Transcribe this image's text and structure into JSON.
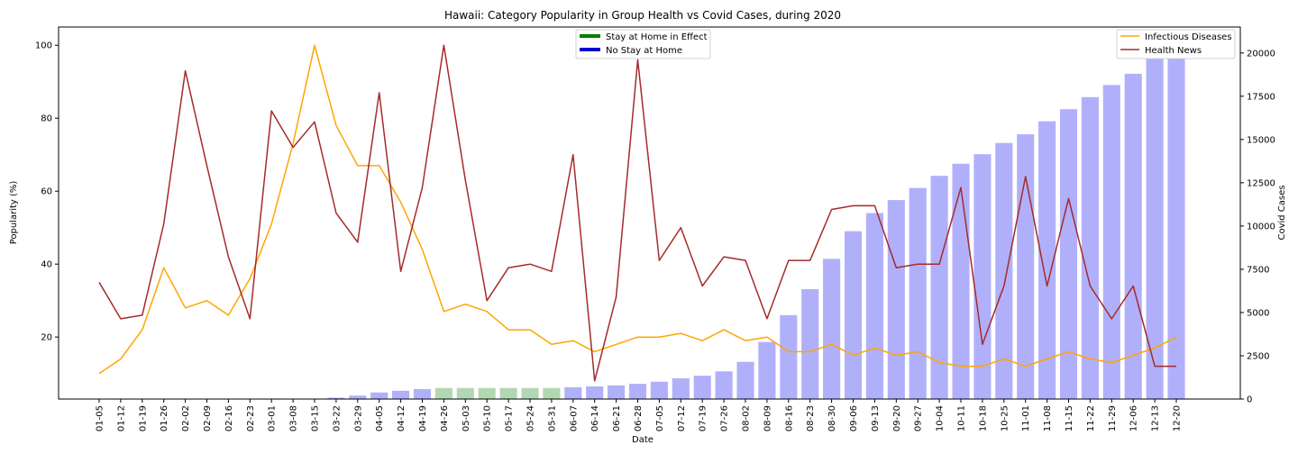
{
  "chart_data": {
    "type": "bar+line",
    "title": "Hawaii: Category Popularity in Group Health vs Covid Cases, during 2020",
    "xlabel": "Date",
    "ylabel_left": "Popularity (%)",
    "ylabel_right": "Covid Cases",
    "ylim_left": [
      3,
      105
    ],
    "yticks_left": [
      "20",
      "40",
      "60",
      "80",
      "100"
    ],
    "ytick_values_left": [
      20,
      40,
      60,
      80,
      100
    ],
    "ylim_right": [
      0,
      21500
    ],
    "yticks_right": [
      "0",
      "2500",
      "5000",
      "7500",
      "10000",
      "12500",
      "15000",
      "17500",
      "20000"
    ],
    "ytick_values_right": [
      0,
      2500,
      5000,
      7500,
      10000,
      12500,
      15000,
      17500,
      20000
    ],
    "categories": [
      "01-05",
      "01-12",
      "01-19",
      "01-26",
      "02-02",
      "02-09",
      "02-16",
      "02-23",
      "03-01",
      "03-08",
      "03-15",
      "03-22",
      "03-29",
      "04-05",
      "04-12",
      "04-19",
      "04-26",
      "05-03",
      "05-10",
      "05-17",
      "05-24",
      "05-31",
      "06-07",
      "06-14",
      "06-21",
      "06-28",
      "07-05",
      "07-12",
      "07-19",
      "07-26",
      "08-02",
      "08-09",
      "08-16",
      "08-23",
      "08-30",
      "09-06",
      "09-13",
      "09-20",
      "09-27",
      "10-04",
      "10-11",
      "10-18",
      "10-25",
      "11-01",
      "11-08",
      "11-15",
      "11-22",
      "11-29",
      "12-06",
      "12-13",
      "12-20"
    ],
    "bars": {
      "name": "Covid Cases",
      "values": [
        0,
        0,
        0,
        0,
        0,
        0,
        0,
        0,
        0,
        0,
        0,
        80,
        200,
        380,
        480,
        580,
        640,
        640,
        640,
        640,
        640,
        640,
        680,
        730,
        790,
        880,
        1000,
        1200,
        1350,
        1600,
        2150,
        3300,
        4850,
        6350,
        8100,
        9700,
        10750,
        11500,
        12200,
        12900,
        13600,
        14150,
        14800,
        15300,
        16050,
        16750,
        17450,
        18150,
        18800,
        19650,
        20550
      ],
      "stay_at_home_indices": [
        16,
        17,
        18,
        19,
        20,
        21
      ],
      "color_default": "#b0b0fa",
      "color_stay_at_home": "#b2d8b2"
    },
    "series": [
      {
        "name": "Infectious Diseases",
        "color": "#ffa500",
        "values": [
          10,
          14,
          22,
          39,
          28,
          30,
          26,
          36,
          51,
          73,
          100,
          78,
          67,
          67,
          57,
          44,
          27,
          29,
          27,
          22,
          22,
          18,
          19,
          16,
          18,
          20,
          20,
          21,
          19,
          22,
          19,
          20,
          16,
          16,
          18,
          15,
          17,
          15,
          16,
          13,
          12,
          12,
          14,
          12,
          14,
          16,
          14,
          13,
          15,
          17,
          20
        ]
      },
      {
        "name": "Health News",
        "color": "#a52a2a",
        "values": [
          35,
          25,
          26,
          51,
          93,
          67,
          42,
          25,
          82,
          72,
          79,
          54,
          46,
          87,
          38,
          61,
          100,
          63,
          30,
          39,
          40,
          38,
          70,
          8,
          31,
          96,
          41,
          50,
          34,
          42,
          41,
          25,
          41,
          41,
          55,
          56,
          56,
          39,
          40,
          40,
          61,
          18,
          34,
          64,
          34,
          58,
          34,
          25,
          34,
          12,
          12
        ]
      }
    ],
    "legend_policy": {
      "position": "top-center",
      "entries": [
        {
          "label": "Stay at Home in Effect",
          "color": "#008000"
        },
        {
          "label": "No Stay at Home",
          "color": "#0000cd"
        }
      ]
    },
    "legend_series": {
      "position": "top-right",
      "entries": [
        {
          "label": "Infectious Diseases",
          "color": "#ffa500"
        },
        {
          "label": "Health News",
          "color": "#a52a2a"
        }
      ]
    },
    "grid": false
  }
}
